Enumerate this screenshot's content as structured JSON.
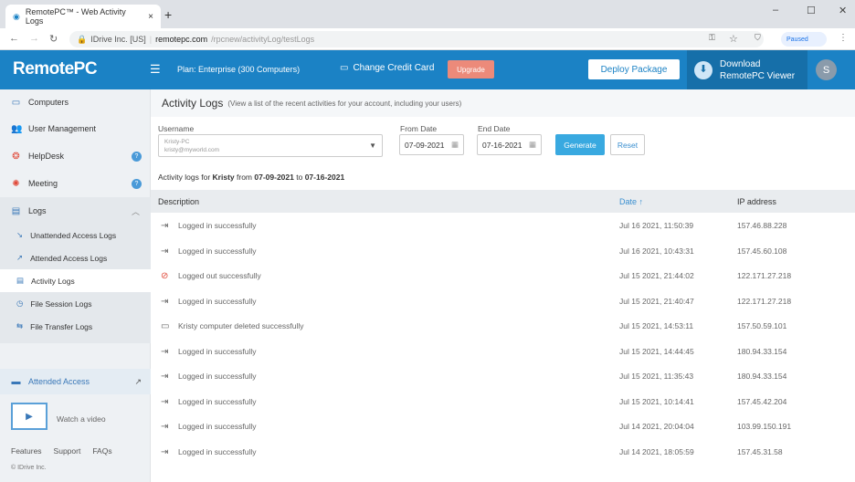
{
  "browser": {
    "tab_title": "RemotePC™ - Web Activity Logs",
    "site": "IDrive Inc. [US]",
    "url_host": "remotepc.com",
    "url_path": "/rpcnew/activityLog/testLogs",
    "paused": "Paused"
  },
  "header": {
    "logo": "RemotePC",
    "plan": "Plan: Enterprise (300 Computers)",
    "change_card": "Change Credit Card",
    "upgrade": "Upgrade",
    "deploy": "Deploy Package",
    "download_l1": "Download",
    "download_l2": "RemotePC Viewer",
    "avatar": "S"
  },
  "sidebar": {
    "items": [
      {
        "label": "Computers",
        "icon": "monitor-icon"
      },
      {
        "label": "User Management",
        "icon": "users-icon"
      },
      {
        "label": "HelpDesk",
        "icon": "lifebuoy-icon"
      },
      {
        "label": "Meeting",
        "icon": "meeting-icon"
      },
      {
        "label": "Logs",
        "icon": "logs-icon"
      }
    ],
    "sub_items": [
      {
        "label": "Unattended Access Logs"
      },
      {
        "label": "Attended Access Logs"
      },
      {
        "label": "Activity Logs",
        "active": true
      },
      {
        "label": "File Session Logs"
      },
      {
        "label": "File Transfer Logs"
      }
    ],
    "attended": "Attended Access",
    "video": "Watch a video",
    "footer": [
      "Features",
      "Support",
      "FAQs"
    ],
    "copyright": "© IDrive Inc."
  },
  "main": {
    "title": "Activity Logs",
    "subtitle": "(View a list of the recent activities for your account, including your users)",
    "username_label": "Username",
    "username_name": "Kristy-PC",
    "username_email": "kristy@myworld.com",
    "from_label": "From Date",
    "from": "07-09-2021",
    "end_label": "End Date",
    "end": "07-16-2021",
    "generate": "Generate",
    "reset": "Reset",
    "summary": {
      "pre": "Activity logs for",
      "user": "Kristy",
      "from_word": "from",
      "from": "07-09-2021",
      "to_word": "to",
      "to": "07-16-2021"
    },
    "columns": {
      "description": "Description",
      "date": "Date",
      "ip": "IP address"
    },
    "rows": [
      {
        "icon": "login-icon",
        "desc": "Logged in successfully",
        "date": "Jul 16 2021, 11:50:39",
        "ip": "157.46.88.228"
      },
      {
        "icon": "login-icon",
        "desc": "Logged in successfully",
        "date": "Jul 16 2021, 10:43:31",
        "ip": "157.45.60.108"
      },
      {
        "icon": "logout-icon",
        "desc": "Logged out successfully",
        "date": "Jul 15 2021, 21:44:02",
        "ip": "122.171.27.218"
      },
      {
        "icon": "login-icon",
        "desc": "Logged in successfully",
        "date": "Jul 15 2021, 21:40:47",
        "ip": "122.171.27.218"
      },
      {
        "icon": "computer-icon",
        "desc": "Kristy computer deleted successfully",
        "date": "Jul 15 2021, 14:53:11",
        "ip": "157.50.59.101"
      },
      {
        "icon": "login-icon",
        "desc": "Logged in successfully",
        "date": "Jul 15 2021, 14:44:45",
        "ip": "180.94.33.154"
      },
      {
        "icon": "login-icon",
        "desc": "Logged in successfully",
        "date": "Jul 15 2021, 11:35:43",
        "ip": "180.94.33.154"
      },
      {
        "icon": "login-icon",
        "desc": "Logged in successfully",
        "date": "Jul 15 2021, 10:14:41",
        "ip": "157.45.42.204"
      },
      {
        "icon": "login-icon",
        "desc": "Logged in successfully",
        "date": "Jul 14 2021, 20:04:04",
        "ip": "103.99.150.191"
      },
      {
        "icon": "login-icon",
        "desc": "Logged in successfully",
        "date": "Jul 14 2021, 18:05:59",
        "ip": "157.45.31.58"
      }
    ]
  }
}
